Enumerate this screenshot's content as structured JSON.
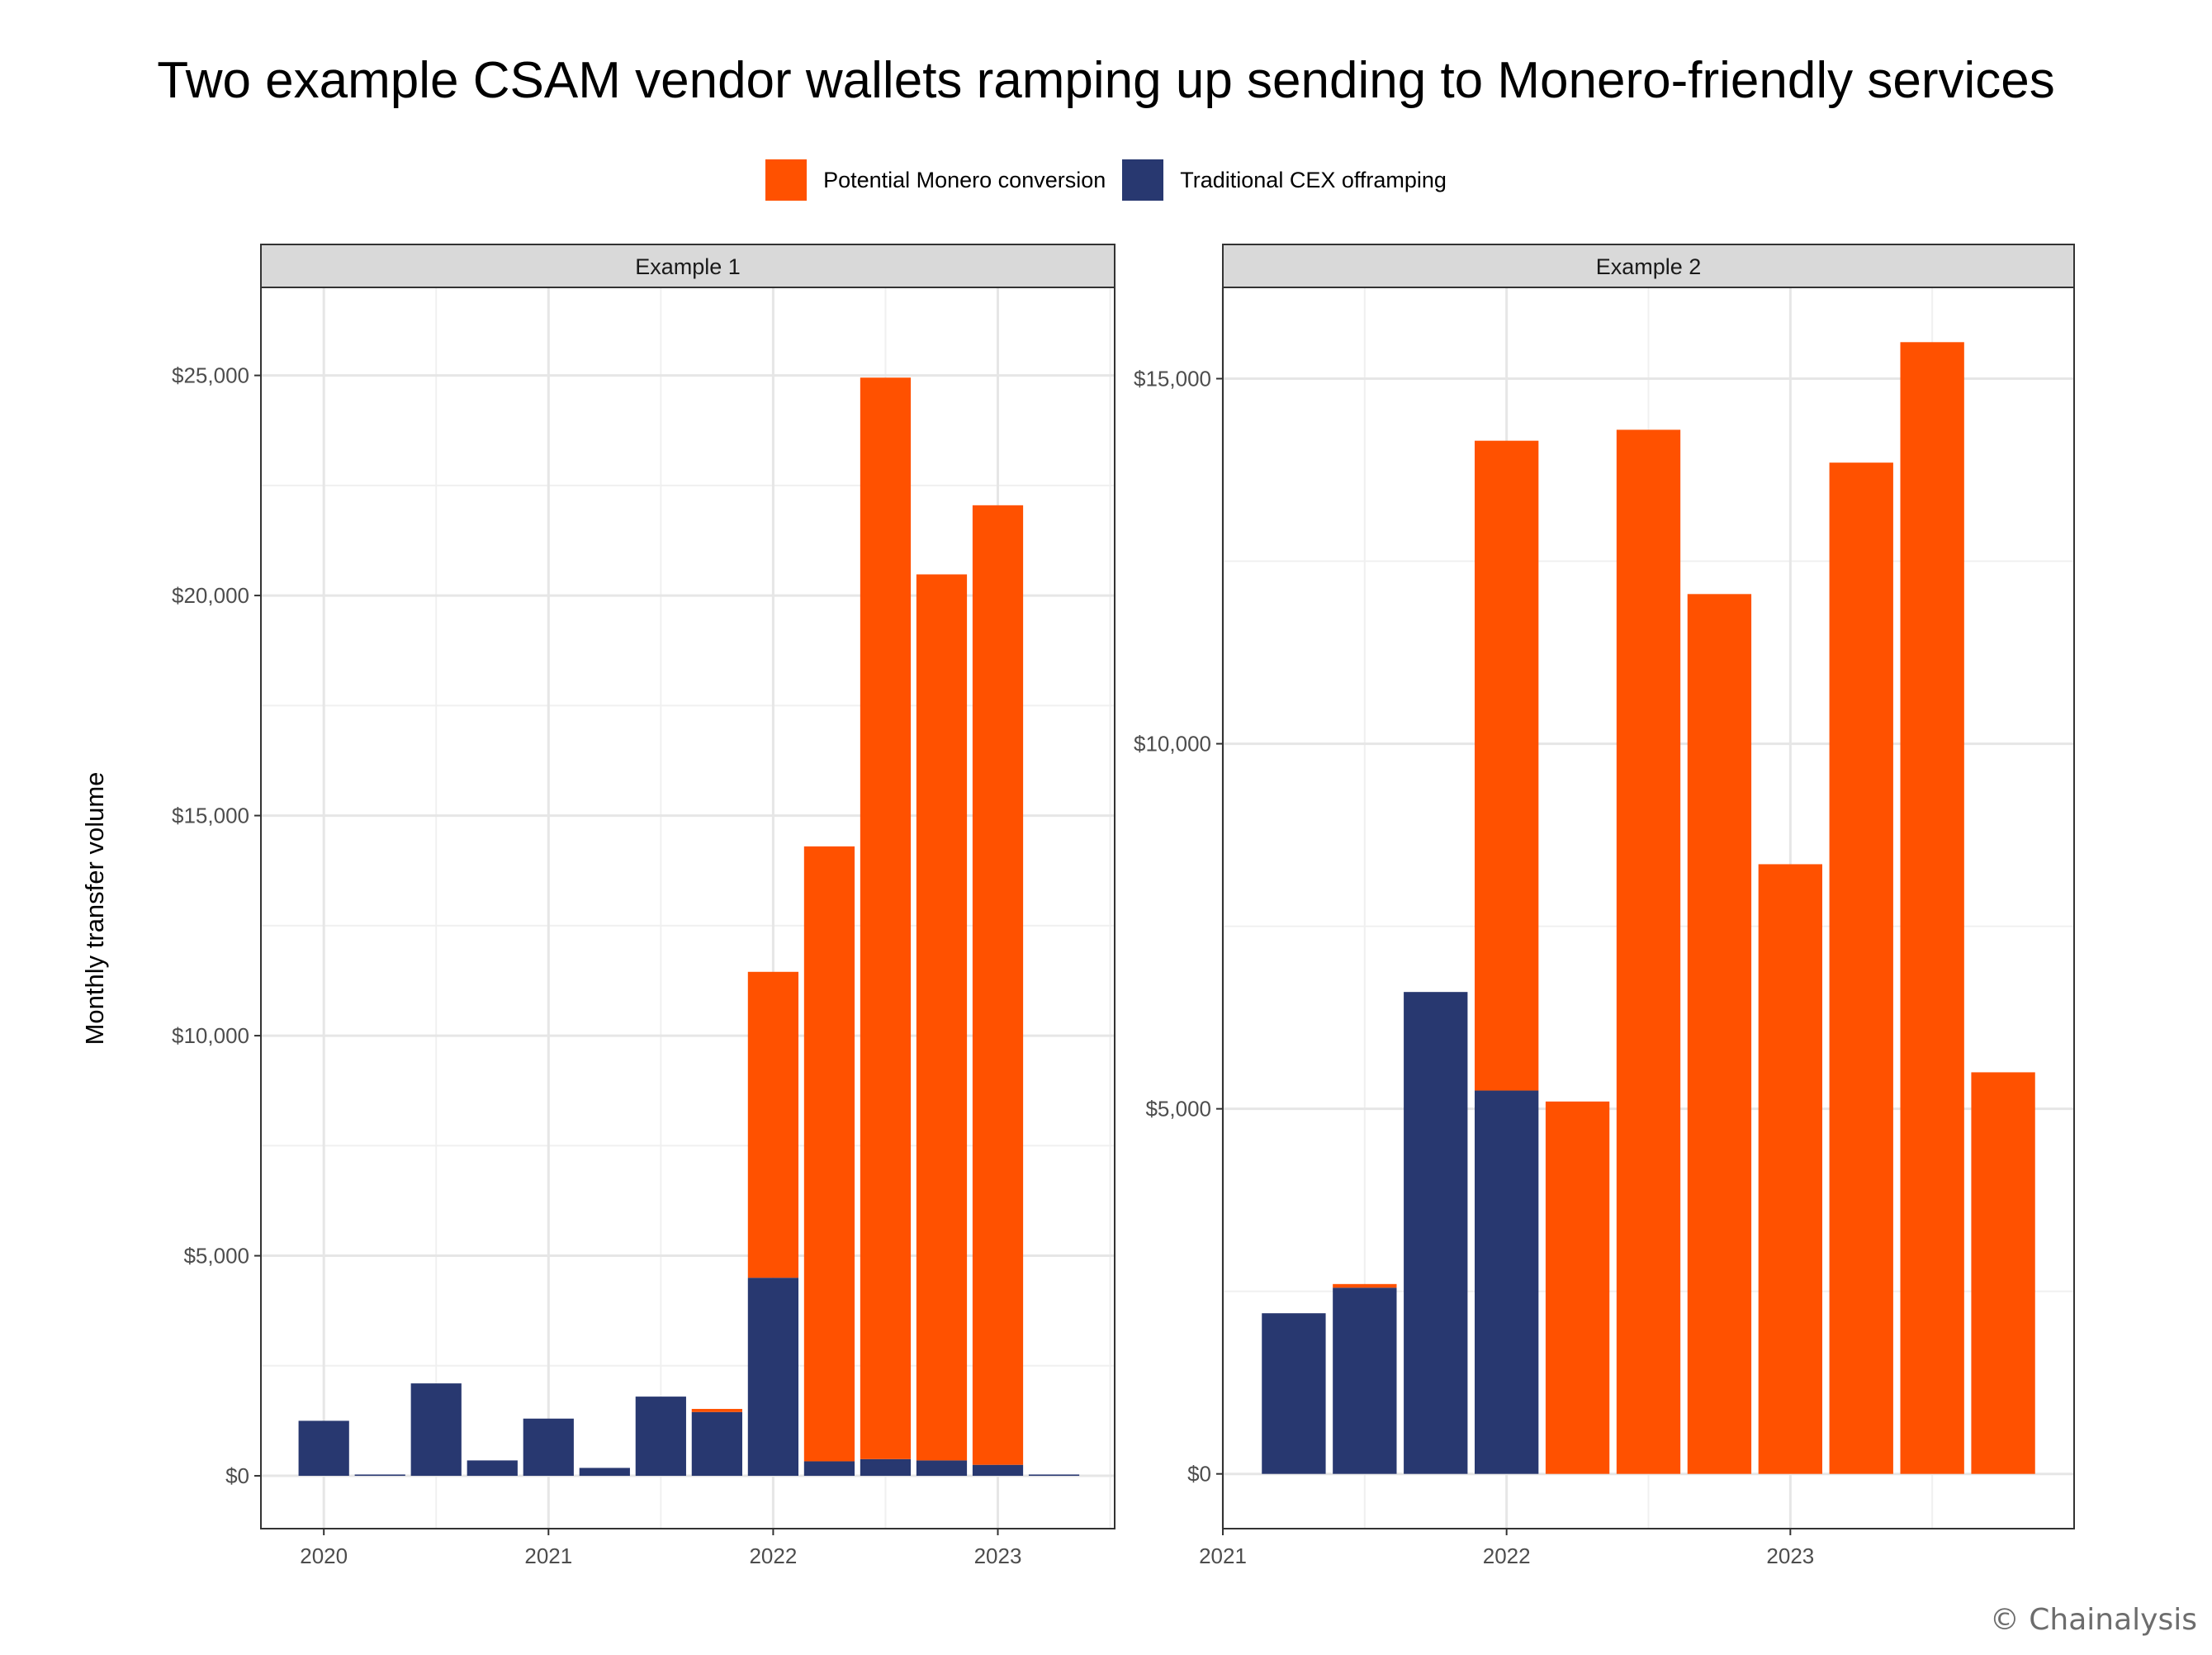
{
  "title": "Two example CSAM vendor wallets ramping up sending to Monero-friendly services",
  "ylabel": "Monthly transfer volume",
  "watermark": "© Chainalysis",
  "colors": {
    "monero": "#FF5100",
    "cex": "#283870"
  },
  "legend": [
    {
      "label": "Potential Monero conversion",
      "color": "#FF5100"
    },
    {
      "label": "Traditional CEX offramping",
      "color": "#283870"
    }
  ],
  "chart_data": [
    {
      "type": "bar",
      "stacked": true,
      "panel": "Example 1",
      "xlim": [
        2019.72,
        2023.52
      ],
      "ylim": [
        -1200,
        27000
      ],
      "x_ticks": [
        2020,
        2021,
        2022,
        2023
      ],
      "y_ticks": [
        0,
        5000,
        10000,
        15000,
        20000,
        25000
      ],
      "y_tick_labels": [
        "$0",
        "$5,000",
        "$10,000",
        "$15,000",
        "$20,000",
        "$25,000"
      ],
      "bar_width": 0.225,
      "x": [
        2020.0,
        2020.25,
        2020.5,
        2020.75,
        2021.0,
        2021.25,
        2021.5,
        2021.75,
        2022.0,
        2022.25,
        2022.5,
        2022.75,
        2023.0,
        2023.25
      ],
      "series": [
        {
          "name": "Traditional CEX offramping",
          "values": [
            1250,
            30,
            2100,
            350,
            1300,
            180,
            1800,
            1450,
            4500,
            330,
            380,
            350,
            250,
            30
          ]
        },
        {
          "name": "Potential Monero conversion",
          "values": [
            0,
            0,
            0,
            0,
            0,
            0,
            0,
            70,
            6950,
            13970,
            24570,
            20130,
            21800,
            0
          ]
        }
      ]
    },
    {
      "type": "bar",
      "stacked": true,
      "panel": "Example 2",
      "xlim": [
        2021.0,
        2024.0
      ],
      "ylim": [
        -750,
        16250
      ],
      "x_ticks": [
        2021,
        2022,
        2023
      ],
      "y_ticks": [
        0,
        5000,
        10000,
        15000
      ],
      "y_tick_labels": [
        "$0",
        "$5,000",
        "$10,000",
        "$15,000"
      ],
      "bar_width": 0.225,
      "x": [
        2021.25,
        2021.5,
        2021.75,
        2022.0,
        2022.25,
        2022.5,
        2022.75,
        2023.0,
        2023.25,
        2023.5,
        2023.75
      ],
      "series": [
        {
          "name": "Traditional CEX offramping",
          "values": [
            2200,
            2550,
            6600,
            5250,
            0,
            0,
            0,
            0,
            0,
            0,
            0
          ]
        },
        {
          "name": "Potential Monero conversion",
          "values": [
            0,
            50,
            0,
            8900,
            5100,
            14300,
            12050,
            8350,
            13850,
            15500,
            5500
          ]
        }
      ]
    }
  ]
}
